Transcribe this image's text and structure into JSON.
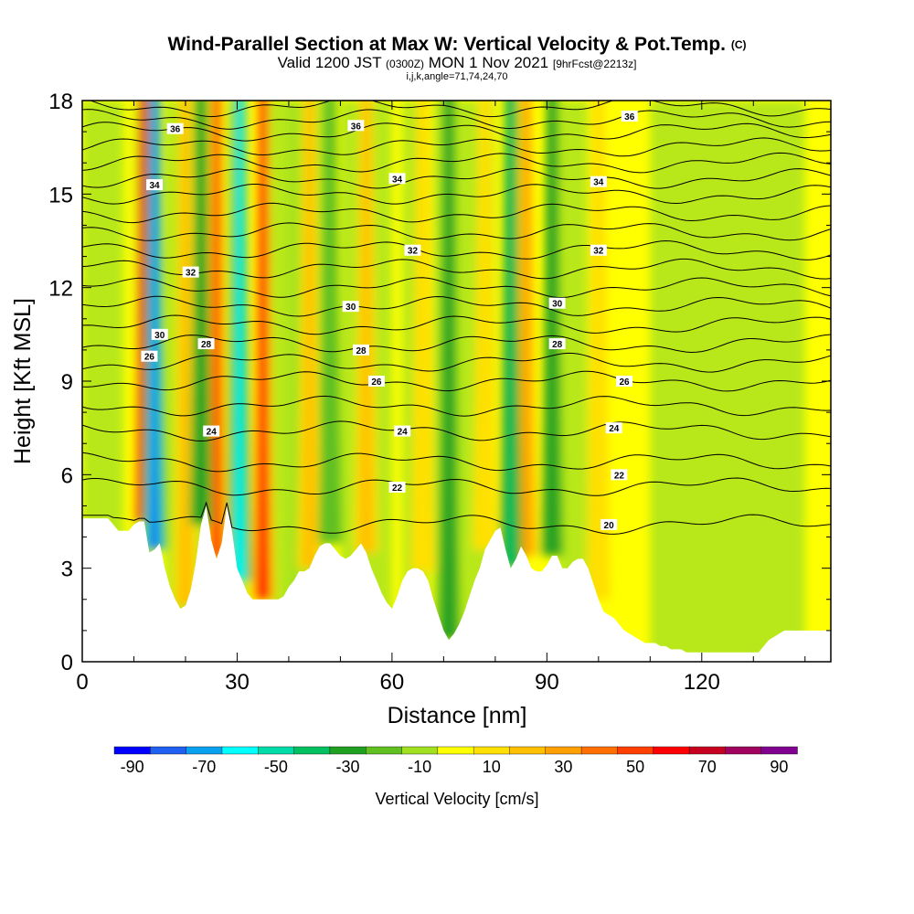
{
  "header": {
    "title_main": "Wind-Parallel Section at Max W: Vertical Velocity & Pot.Temp.",
    "title_copy": "(C)",
    "subtitle_a": "Valid 1200 JST",
    "subtitle_b": "(0300Z)",
    "subtitle_c": "MON 1 Nov 2021",
    "subtitle_d": "[9hrFcst@2213z]",
    "subtitle_2": "i,j,k,angle=71,74,24,70"
  },
  "chart_data": {
    "type": "heatmap",
    "xlabel": "Distance [nm]",
    "ylabel": "Height [Kft MSL]",
    "xlim": [
      0,
      145
    ],
    "ylim": [
      0,
      18
    ],
    "xticks": [
      "0",
      "30",
      "60",
      "90",
      "120"
    ],
    "yticks": [
      "0",
      "3",
      "6",
      "9",
      "12",
      "15",
      "18"
    ],
    "grid": false,
    "colorbar": {
      "label": "Vertical Velocity [cm/s]",
      "tick_labels": [
        "-90",
        "-70",
        "-50",
        "-30",
        "-10",
        "10",
        "30",
        "50",
        "70",
        "90"
      ],
      "colors": [
        "#0000ff",
        "#2060f0",
        "#0aa0f0",
        "#00ffff",
        "#00dca8",
        "#00c060",
        "#20a020",
        "#60c020",
        "#a0e020",
        "#ffff00",
        "#ffe000",
        "#ffc000",
        "#ffa000",
        "#ff7000",
        "#ff4000",
        "#ff0000",
        "#c80020",
        "#a00060",
        "#800090"
      ]
    },
    "updrafts": [
      {
        "x": 12,
        "peak": 80
      },
      {
        "x": 20,
        "peak": 30
      },
      {
        "x": 26,
        "peak": 55
      },
      {
        "x": 35,
        "peak": 70
      },
      {
        "x": 44,
        "peak": 25
      },
      {
        "x": 55,
        "peak": 25
      },
      {
        "x": 66,
        "peak": 20
      },
      {
        "x": 78,
        "peak": 20
      },
      {
        "x": 86,
        "peak": 40
      },
      {
        "x": 100,
        "peak": 15
      }
    ],
    "downdrafts": [
      {
        "x": 14,
        "peak": -80
      },
      {
        "x": 23,
        "peak": -30
      },
      {
        "x": 30.5,
        "peak": -60
      },
      {
        "x": 48,
        "peak": -20
      },
      {
        "x": 71,
        "peak": -30
      },
      {
        "x": 83,
        "peak": -35
      },
      {
        "x": 91,
        "peak": -30
      }
    ],
    "terrain_kft": [
      4.6,
      4.6,
      4.6,
      4.6,
      4.6,
      4.6,
      4.4,
      4.2,
      4.2,
      4.2,
      4.4,
      4.5,
      4.5,
      3.5,
      3.6,
      3.8,
      3.0,
      2.4,
      2.0,
      1.7,
      1.8,
      2.3,
      3.2,
      4.4,
      5.0,
      3.9,
      3.3,
      3.8,
      5.0,
      4.2,
      3.0,
      2.6,
      2.2,
      2.0,
      2.0,
      2.0,
      2.0,
      2.0,
      2.0,
      2.1,
      2.4,
      2.6,
      2.9,
      2.9,
      3.0,
      3.4,
      3.7,
      3.8,
      3.8,
      3.6,
      3.4,
      3.3,
      3.4,
      3.6,
      3.8,
      3.5,
      3.0,
      2.6,
      2.2,
      1.9,
      1.7,
      2.1,
      2.6,
      2.9,
      3.0,
      3.0,
      2.9,
      2.6,
      2.0,
      1.5,
      1.0,
      0.7,
      0.9,
      1.2,
      1.6,
      2.1,
      2.6,
      3.0,
      3.6,
      3.9,
      4.2,
      4.3,
      3.6,
      3.0,
      3.3,
      3.7,
      3.4,
      3.0,
      2.9,
      2.9,
      3.1,
      3.4,
      3.4,
      3.0,
      3.0,
      3.2,
      3.3,
      3.3,
      3.0,
      2.5,
      2.0,
      1.6,
      1.5,
      1.4,
      1.2,
      1.0,
      0.9,
      0.8,
      0.7,
      0.6,
      0.6,
      0.6,
      0.5,
      0.5,
      0.4,
      0.4,
      0.4,
      0.3,
      0.3,
      0.3,
      0.3,
      0.3,
      0.3,
      0.3,
      0.3,
      0.3,
      0.3,
      0.3,
      0.3,
      0.3,
      0.3,
      0.3,
      0.5,
      0.7,
      0.8,
      0.9,
      1.0,
      1.0,
      1.0,
      1.0,
      1.0,
      1.0,
      1.0,
      1.0,
      1.0,
      1.0
    ],
    "isentropes": [
      {
        "value": 20,
        "label_x": 102,
        "ref_kft": 4.4
      },
      {
        "value": 22,
        "label_x": 61,
        "ref_kft": 5.6
      },
      {
        "value": 22,
        "label_x": 104,
        "ref_kft": 6.0
      },
      {
        "value": 24,
        "label_x": 25,
        "ref_kft": 7.4
      },
      {
        "value": 24,
        "label_x": 62,
        "ref_kft": 7.4
      },
      {
        "value": 24,
        "label_x": 103,
        "ref_kft": 7.5
      },
      {
        "value": 26,
        "label_x": 57,
        "ref_kft": 9.0
      },
      {
        "value": 26,
        "label_x": 105,
        "ref_kft": 9.0
      },
      {
        "value": 26,
        "label_x": 13,
        "ref_kft": 9.8
      },
      {
        "value": 28,
        "label_x": 24,
        "ref_kft": 10.2
      },
      {
        "value": 28,
        "label_x": 54,
        "ref_kft": 10.0
      },
      {
        "value": 28,
        "label_x": 92,
        "ref_kft": 10.2
      },
      {
        "value": 30,
        "label_x": 15,
        "ref_kft": 10.5
      },
      {
        "value": 30,
        "label_x": 52,
        "ref_kft": 11.4
      },
      {
        "value": 30,
        "label_x": 92,
        "ref_kft": 11.5
      },
      {
        "value": 32,
        "label_x": 21,
        "ref_kft": 12.5
      },
      {
        "value": 32,
        "label_x": 64,
        "ref_kft": 13.2
      },
      {
        "value": 32,
        "label_x": 100,
        "ref_kft": 13.2
      },
      {
        "value": 34,
        "label_x": 14,
        "ref_kft": 15.3
      },
      {
        "value": 34,
        "label_x": 61,
        "ref_kft": 15.5
      },
      {
        "value": 34,
        "label_x": 100,
        "ref_kft": 15.4
      },
      {
        "value": 36,
        "label_x": 18,
        "ref_kft": 17.1
      },
      {
        "value": 36,
        "label_x": 53,
        "ref_kft": 17.2
      },
      {
        "value": 36,
        "label_x": 106,
        "ref_kft": 17.5
      }
    ]
  }
}
